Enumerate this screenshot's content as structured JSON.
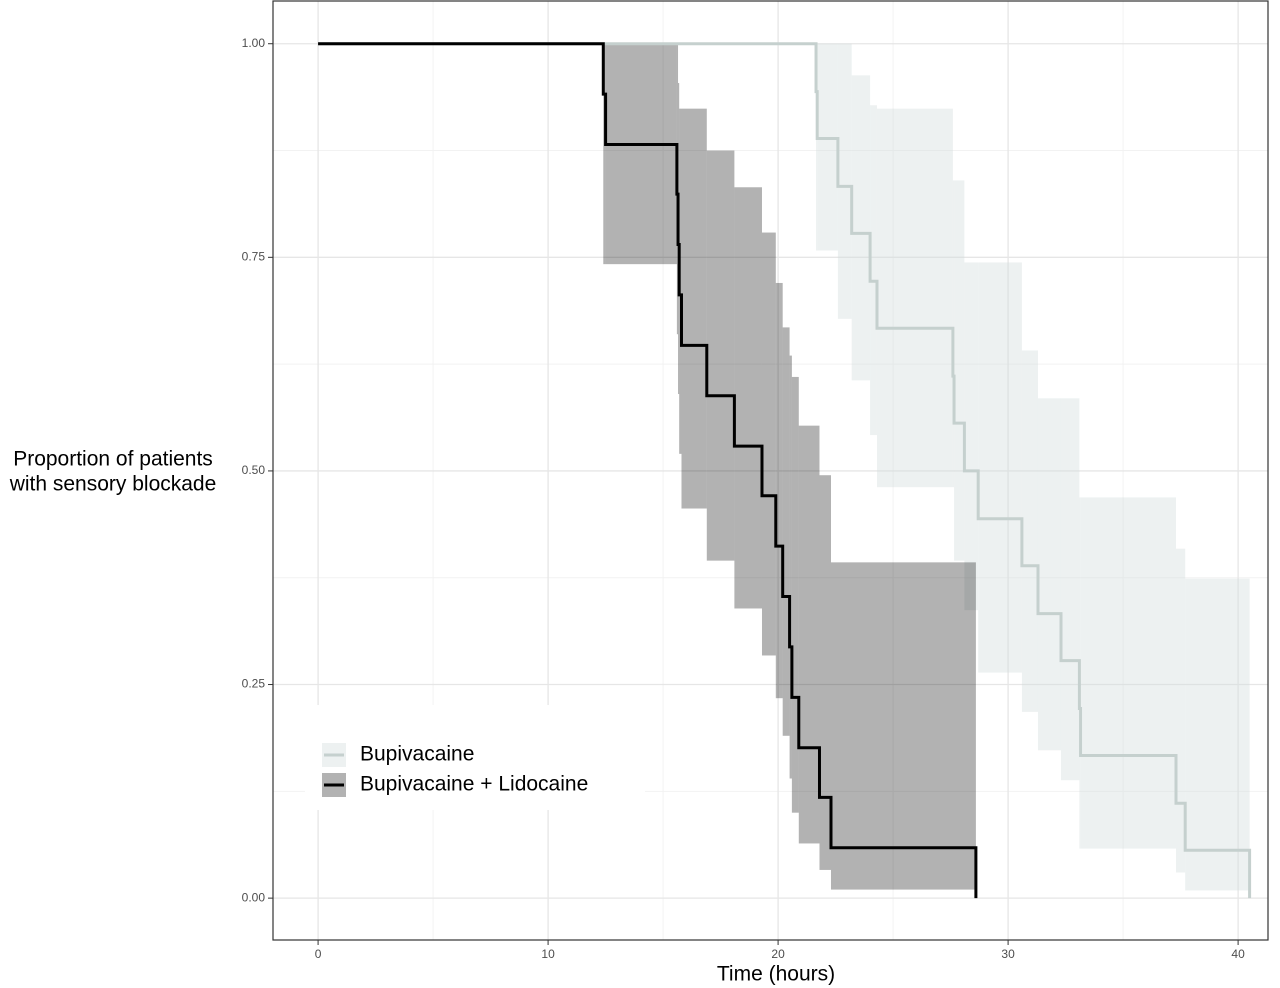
{
  "chart_data": {
    "type": "step",
    "xlabel": "Time (hours)",
    "ylabel": [
      "Proportion of patients",
      "with sensory blockade"
    ],
    "xlim": [
      -1.96,
      41.3
    ],
    "ylim": [
      -0.049,
      1.05
    ],
    "xticks": [
      0,
      10,
      20,
      30,
      40
    ],
    "yticks": [
      {
        "value": 0,
        "label": "0.00"
      },
      {
        "value": 0.25,
        "label": "0.25"
      },
      {
        "value": 0.5,
        "label": "0.50"
      },
      {
        "value": 0.75,
        "label": "0.75"
      },
      {
        "value": 1,
        "label": "1.00"
      }
    ],
    "grid": true,
    "legend": "bottom-left",
    "series": [
      {
        "name": "Bupivacaine",
        "color": "#c5d0ce",
        "band_color": "#d3dbdc",
        "x": [
          0,
          21.65,
          21.7,
          22.6,
          23.2,
          24.0,
          24.3,
          27.6,
          27.65,
          28.1,
          28.7,
          30.6,
          31.3,
          32.3,
          33.1,
          33.15,
          37.3,
          37.7,
          40.5
        ],
        "values": [
          1,
          0.944,
          0.889,
          0.833,
          0.778,
          0.722,
          0.667,
          0.611,
          0.556,
          0.5,
          0.444,
          0.389,
          0.333,
          0.278,
          0.222,
          0.167,
          0.111,
          0.056,
          0
        ],
        "lower": [
          1,
          0.758,
          0.758,
          0.678,
          0.606,
          0.542,
          0.481,
          0.481,
          0.395,
          0.337,
          0.264,
          0.218,
          0.173,
          0.138,
          0.058,
          0.058,
          0.03,
          0.009,
          null
        ],
        "upper": [
          1,
          1,
          1,
          1,
          0.963,
          0.928,
          0.924,
          0.84,
          0.84,
          0.744,
          0.744,
          0.641,
          0.585,
          0.585,
          0.469,
          0.469,
          0.409,
          0.374,
          null
        ]
      },
      {
        "name": "Bupivacaine + Lidocaine",
        "color": "#000000",
        "band_color": "#000000",
        "x": [
          0,
          12.4,
          12.5,
          15.6,
          15.65,
          15.7,
          15.8,
          16.9,
          18.1,
          19.3,
          19.9,
          20.2,
          20.5,
          20.6,
          20.9,
          21.8,
          22.3,
          28.6
        ],
        "values": [
          1,
          0.941,
          0.882,
          0.824,
          0.765,
          0.706,
          0.647,
          0.588,
          0.529,
          0.471,
          0.412,
          0.353,
          0.294,
          0.235,
          0.176,
          0.118,
          0.059,
          0
        ],
        "lower": [
          1,
          0.742,
          0.742,
          0.66,
          0.59,
          0.52,
          0.456,
          0.395,
          0.339,
          0.284,
          0.234,
          0.19,
          0.14,
          0.1,
          0.064,
          0.033,
          0.01,
          null
        ],
        "upper": [
          1,
          1,
          1,
          1,
          0.954,
          0.924,
          0.924,
          0.875,
          0.832,
          0.779,
          0.72,
          0.668,
          0.635,
          0.61,
          0.553,
          0.495,
          0.393,
          null
        ]
      }
    ]
  }
}
